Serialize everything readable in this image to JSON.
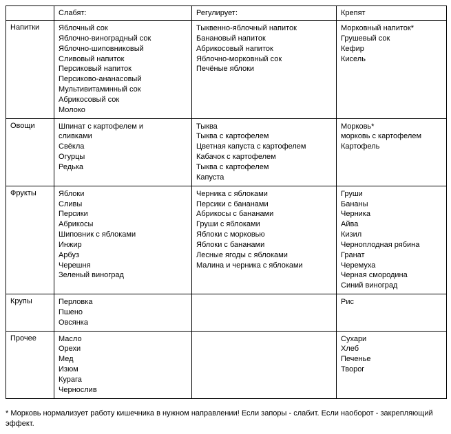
{
  "columns": [
    "",
    "Слабят:",
    "Регулирует:",
    "Крепят"
  ],
  "row_labels": [
    "Напитки",
    "Овощи",
    "Фрукты",
    "Крупы",
    "Прочее"
  ],
  "cells": {
    "napitki": {
      "slabyat": [
        "Яблочный сок",
        "Яблочно-виноградный сок",
        "Яблочно-шиповниковый",
        "Сливовый напиток",
        "Персиковый напиток",
        "Персиково-ананасовый",
        "Мультивитаминный сок",
        "Абрикосовый сок",
        "Молоко"
      ],
      "reguliruet": [
        "Тыквенно-яблочный напиток",
        "Банановый напиток",
        "Абрикосовый напиток",
        "Яблочно-морковный сок",
        "Печёные яблоки"
      ],
      "krepyat": [
        "Морковный напиток*",
        "Грушевый сок",
        "Кефир",
        "Кисель"
      ]
    },
    "ovoshi": {
      "slabyat": [
        "Шпинат с картофелем и",
        "сливками",
        "Свёкла",
        "Огурцы",
        "Редька"
      ],
      "reguliruet": [
        "Тыква",
        "Тыква с картофелем",
        "Цветная капуста с картофелем",
        "Кабачок с картофелем",
        "Тыква с картофелем",
        "Капуста"
      ],
      "krepyat": [
        "Морковь*",
        "морковь с картофелем",
        "Картофель"
      ]
    },
    "frukty": {
      "slabyat": [
        "Яблоки",
        "Сливы",
        "Персики",
        "Абрикосы",
        "Шиповник с яблоками",
        "Инжир",
        "Арбуз",
        "Черешня",
        "Зеленый виноград"
      ],
      "reguliruet": [
        "Черника с яблоками",
        "Персики с бананами",
        "Абрикосы с бананами",
        "Груши с яблоками",
        "Яблоки с морковью",
        "Яблоки с бананами",
        "Лесные ягоды с яблоками",
        "Малина и черника с яблоками"
      ],
      "krepyat": [
        "Груши",
        "Бананы",
        "Черника",
        "Айва",
        "Кизил",
        "Черноплодная рябина",
        "Гранат",
        "Черемуха",
        "Черная смородина",
        "Синий виноград"
      ]
    },
    "krupy": {
      "slabyat": [
        "Перловка",
        "Пшено",
        "Овсянка"
      ],
      "reguliruet": [],
      "krepyat": [
        "Рис"
      ]
    },
    "prochee": {
      "slabyat": [
        "Масло",
        "Орехи",
        "Мед",
        "Изюм",
        "Курага",
        "Чернослив"
      ],
      "reguliruet": [],
      "krepyat": [
        "Сухари",
        "Хлеб",
        "Печенье",
        "Творог"
      ]
    }
  },
  "footnote": "* Морковь нормализует работу кишечника в нужном направлении! Если запоры - слабит. Если наоборот - закрепляющий эффект.",
  "style": {
    "font_family": "Arial",
    "font_size_pt": 8,
    "border_color": "#000000",
    "background_color": "#ffffff",
    "text_color": "#000000"
  }
}
